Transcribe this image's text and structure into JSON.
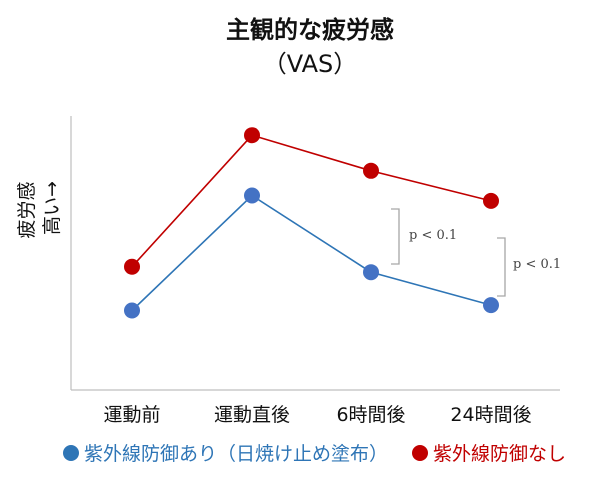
{
  "chart_data": {
    "type": "line",
    "title": "主観的な疲労感",
    "subtitle": "（VAS）",
    "ylabel": "疲労感",
    "ylabel_sub": "高い→",
    "categories": [
      "運動前",
      "運動直後",
      "6時間後",
      "24時間後"
    ],
    "ylim": [
      0,
      10
    ],
    "grid": false,
    "legend": "bottom",
    "series": [
      {
        "name": "紫外線防御あり（日焼け止め塗布）",
        "color": "#4472c4",
        "line": "#2e75b6",
        "values": [
          2.9,
          7.1,
          4.3,
          3.1
        ]
      },
      {
        "name": "紫外線防御なし",
        "color": "#c00000",
        "line": "#c00000",
        "values": [
          4.5,
          9.3,
          8.0,
          6.9
        ]
      }
    ],
    "annotations": [
      {
        "text": "p < 0.1",
        "between": "6時間後"
      },
      {
        "text": "p < 0.1",
        "between": "24時間後"
      }
    ]
  }
}
